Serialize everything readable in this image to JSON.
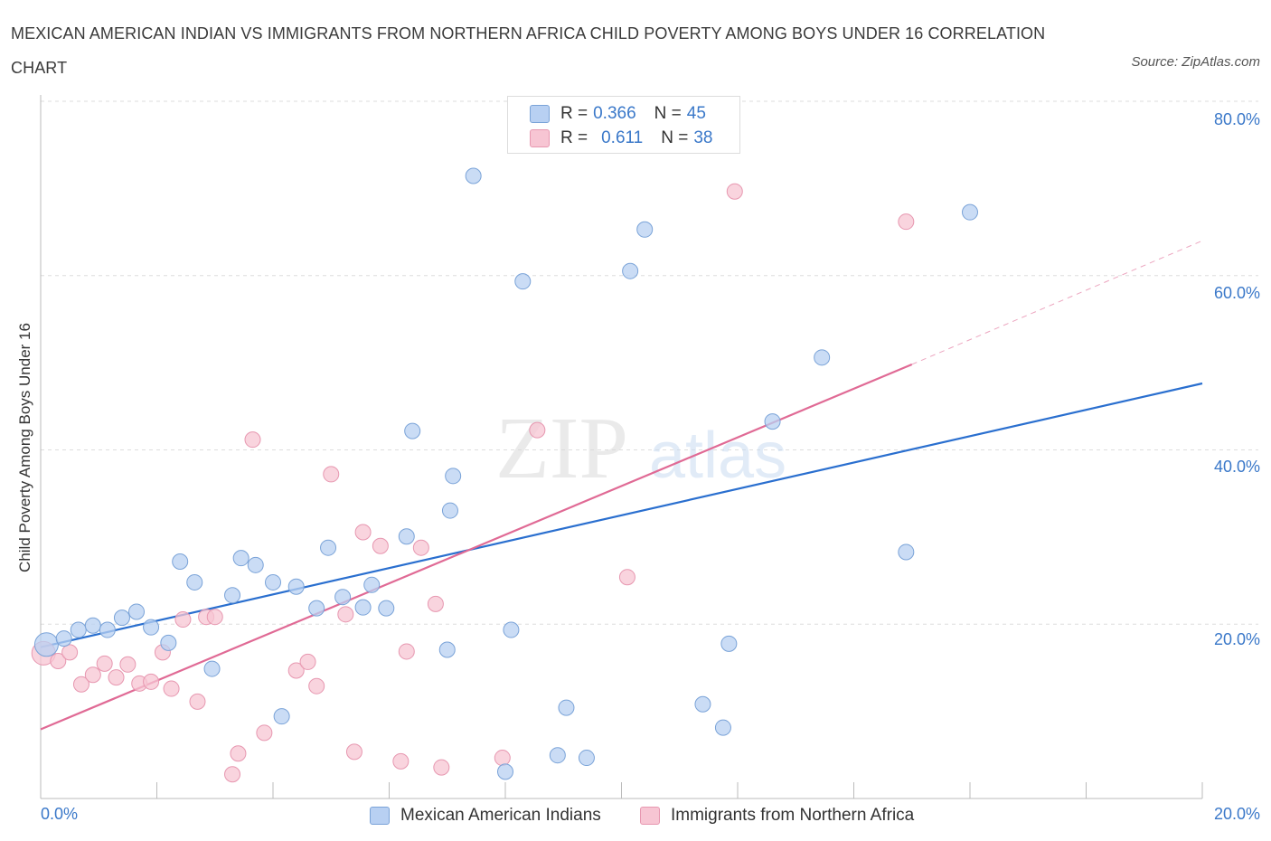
{
  "title": "MEXICAN AMERICAN INDIAN VS IMMIGRANTS FROM NORTHERN AFRICA CHILD POVERTY AMONG BOYS UNDER 16 CORRELATION CHART",
  "source": "Source: ZipAtlas.com",
  "watermark": {
    "zip": "ZIP",
    "atlas": "atlas"
  },
  "colors": {
    "blue_fill": "#b8d0f2",
    "blue_stroke": "#7aa3d8",
    "blue_line": "#2a6fcf",
    "pink_fill": "#f7c5d3",
    "pink_stroke": "#e797b0",
    "pink_line": "#e06a95",
    "tick_text": "#3a78c9",
    "grid": "#dddddd"
  },
  "legend_top": [
    {
      "r_label": "R =",
      "r_value": "0.366",
      "n_label": "N =",
      "n_value": "45"
    },
    {
      "r_label": "R =",
      "r_value": "0.611",
      "n_label": "N =",
      "n_value": "38"
    }
  ],
  "chart_data": {
    "type": "scatter",
    "title": "MEXICAN AMERICAN INDIAN VS IMMIGRANTS FROM NORTHERN AFRICA CHILD POVERTY AMONG BOYS UNDER 16 CORRELATION CHART",
    "xlabel": "",
    "ylabel": "Child Poverty Among Boys Under 16",
    "xlim": [
      0,
      20
    ],
    "ylim": [
      0,
      80
    ],
    "x_tick_labels": [
      "0.0%",
      "20.0%"
    ],
    "y_ticks": [
      20,
      40,
      60,
      80
    ],
    "y_tick_labels": [
      "20.0%",
      "40.0%",
      "60.0%",
      "80.0%"
    ],
    "grid": true,
    "legend_placement": "bottom",
    "series": [
      {
        "name": "Mexican American Indians",
        "color": "#b8d0f2",
        "r": 0.366,
        "n": 45,
        "trend": {
          "x": [
            0,
            20
          ],
          "y": [
            17.5,
            48.0
          ]
        },
        "points": [
          [
            0.1,
            17.8
          ],
          [
            0.4,
            18.5
          ],
          [
            0.65,
            19.5
          ],
          [
            0.9,
            20.0
          ],
          [
            1.15,
            19.5
          ],
          [
            1.4,
            20.9
          ],
          [
            1.65,
            21.6
          ],
          [
            1.9,
            19.8
          ],
          [
            2.2,
            18.0
          ],
          [
            2.4,
            27.4
          ],
          [
            2.65,
            25.0
          ],
          [
            2.95,
            15.0
          ],
          [
            3.3,
            23.5
          ],
          [
            3.45,
            27.8
          ],
          [
            3.7,
            27.0
          ],
          [
            4.0,
            25.0
          ],
          [
            4.15,
            9.5
          ],
          [
            4.4,
            24.5
          ],
          [
            4.75,
            22.0
          ],
          [
            4.95,
            29.0
          ],
          [
            5.2,
            23.3
          ],
          [
            5.55,
            22.1
          ],
          [
            5.7,
            24.7
          ],
          [
            5.95,
            22.0
          ],
          [
            6.3,
            30.3
          ],
          [
            6.4,
            42.5
          ],
          [
            7.0,
            17.2
          ],
          [
            7.05,
            33.3
          ],
          [
            7.1,
            37.3
          ],
          [
            7.45,
            72.0
          ],
          [
            8.0,
            3.1
          ],
          [
            8.1,
            19.5
          ],
          [
            8.3,
            59.8
          ],
          [
            8.9,
            5.0
          ],
          [
            9.05,
            10.5
          ],
          [
            9.4,
            4.7
          ],
          [
            10.15,
            61.0
          ],
          [
            10.4,
            65.8
          ],
          [
            11.4,
            10.9
          ],
          [
            11.75,
            8.2
          ],
          [
            11.85,
            17.9
          ],
          [
            12.6,
            43.6
          ],
          [
            13.45,
            51.0
          ],
          [
            14.9,
            28.5
          ],
          [
            16.0,
            67.8
          ]
        ]
      },
      {
        "name": "Immigrants from Northern Africa",
        "color": "#f7c5d3",
        "r": 0.611,
        "n": 38,
        "trend": {
          "x": [
            0,
            15.0
          ],
          "y": [
            8.0,
            50.2
          ]
        },
        "trend_dashed": {
          "x": [
            15.0,
            20
          ],
          "y": [
            50.2,
            64.5
          ]
        },
        "points": [
          [
            0.05,
            16.8
          ],
          [
            0.3,
            15.9
          ],
          [
            0.5,
            16.9
          ],
          [
            0.7,
            13.2
          ],
          [
            0.9,
            14.3
          ],
          [
            1.1,
            15.6
          ],
          [
            1.3,
            14.0
          ],
          [
            1.5,
            15.5
          ],
          [
            1.7,
            13.3
          ],
          [
            1.9,
            13.5
          ],
          [
            2.1,
            16.9
          ],
          [
            2.25,
            12.7
          ],
          [
            2.45,
            20.7
          ],
          [
            2.7,
            11.2
          ],
          [
            2.85,
            21.0
          ],
          [
            3.0,
            21.0
          ],
          [
            3.3,
            2.8
          ],
          [
            3.4,
            5.2
          ],
          [
            3.65,
            41.5
          ],
          [
            3.85,
            7.6
          ],
          [
            4.4,
            14.8
          ],
          [
            4.6,
            15.8
          ],
          [
            4.75,
            13.0
          ],
          [
            5.0,
            37.5
          ],
          [
            5.25,
            21.3
          ],
          [
            5.4,
            5.4
          ],
          [
            5.55,
            30.8
          ],
          [
            5.85,
            29.2
          ],
          [
            6.2,
            4.3
          ],
          [
            6.3,
            17.0
          ],
          [
            6.55,
            29.0
          ],
          [
            6.8,
            22.5
          ],
          [
            6.9,
            3.6
          ],
          [
            7.95,
            4.7
          ],
          [
            8.55,
            42.6
          ],
          [
            10.1,
            25.6
          ],
          [
            11.95,
            70.2
          ],
          [
            14.9,
            66.7
          ]
        ]
      }
    ]
  }
}
